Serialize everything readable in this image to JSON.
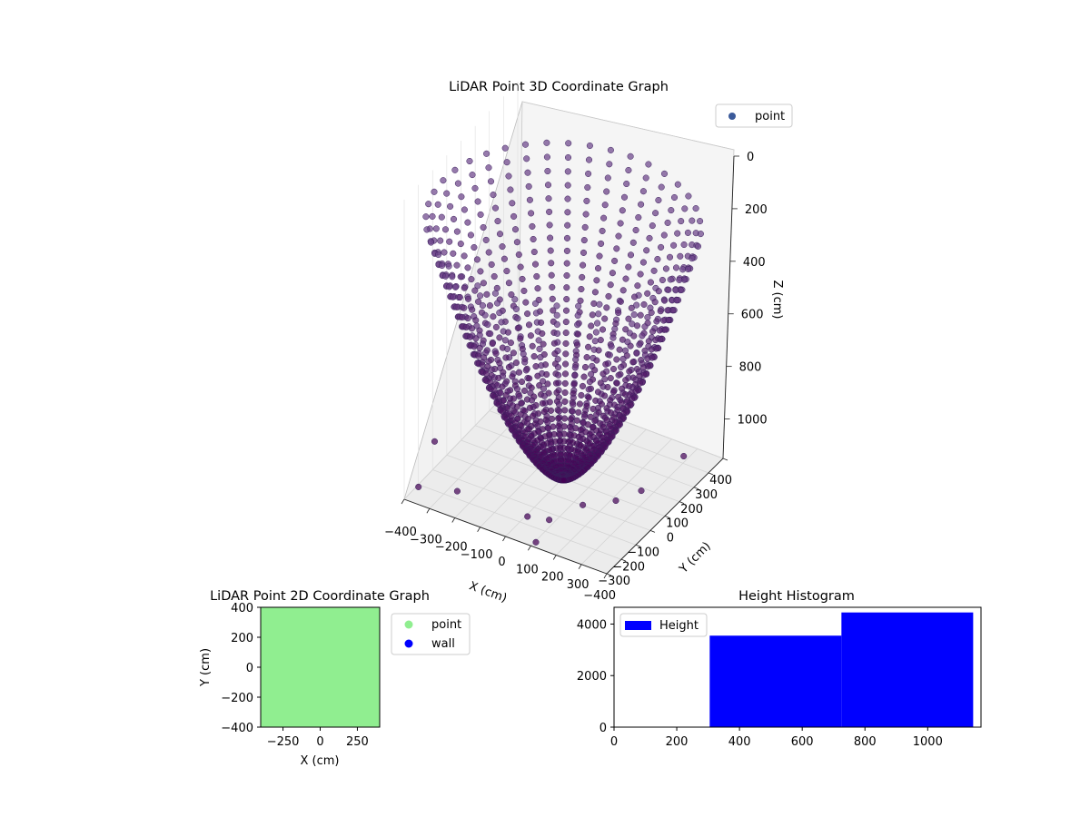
{
  "chart_data": [
    {
      "type": "scatter",
      "title": "LiDAR Point 3D Coordinate Graph",
      "xlabel": "X (cm)",
      "ylabel": "Y (cm)",
      "zlabel": "Z (cm)",
      "xlim": [
        -400,
        400
      ],
      "ylim": [
        -400,
        400
      ],
      "zlim": [
        -1150,
        0
      ],
      "x_ticks": [
        "−400",
        "−300",
        "−200",
        "−100",
        "0",
        "100",
        "200",
        "300",
        "400"
      ],
      "y_ticks": [
        "−400",
        "−300",
        "−200",
        "−100",
        "0",
        "100",
        "200",
        "300",
        "400"
      ],
      "z_ticks": [
        "0",
        "200",
        "400",
        "600",
        "800",
        "1000"
      ],
      "z_tick_values": [
        0,
        -200,
        -400,
        -600,
        -800,
        -1000
      ],
      "legend": {
        "entries": [
          {
            "label": "point",
            "color": "#3b5a9a"
          }
        ],
        "placement": "upper right"
      },
      "colormap": "viridis",
      "points": {
        "description_of_pattern": "radial lines of points forming a bowl, converging at the origin",
        "num_rays": 40,
        "points_per_ray": 34,
        "inner_z": -1150,
        "outer_z": -220,
        "outer_radius": 470
      },
      "outliers": [
        {
          "x": -355,
          "y": -380,
          "z": -1100
        },
        {
          "x": 30,
          "y": -300,
          "z": -1120
        },
        {
          "x": 110,
          "y": -290,
          "z": -1110
        },
        {
          "x": 180,
          "y": -180,
          "z": -1090
        },
        {
          "x": 270,
          "y": -110,
          "z": -1080
        },
        {
          "x": 330,
          "y": -40,
          "z": -1060
        },
        {
          "x": 360,
          "y": 200,
          "z": -1050
        },
        {
          "x": 120,
          "y": -400,
          "z": -1130
        },
        {
          "x": -230,
          "y": -330,
          "z": -1100
        },
        {
          "x": -420,
          "y": -150,
          "z": -1080
        }
      ]
    },
    {
      "type": "scatter",
      "title": "LiDAR Point 2D Coordinate Graph",
      "xlabel": "X (cm)",
      "ylabel": "Y (cm)",
      "xlim": [
        -400,
        400
      ],
      "ylim": [
        -400,
        400
      ],
      "x_ticks": [
        -250,
        0,
        250
      ],
      "y_ticks": [
        -400,
        -200,
        0,
        200,
        400
      ],
      "series": [
        {
          "name": "point",
          "color": "#90ee90"
        },
        {
          "name": "wall",
          "color": "#0000ff"
        }
      ],
      "legend_placement": "outside right"
    },
    {
      "type": "bar",
      "title": "Height Histogram",
      "series": [
        {
          "name": "Height",
          "color": "#0000ff"
        }
      ],
      "bins": [
        {
          "start": 305,
          "end": 725,
          "count": 3550
        },
        {
          "start": 725,
          "end": 1145,
          "count": 4450
        }
      ],
      "xlim": [
        0,
        1170
      ],
      "ylim": [
        0,
        4650
      ],
      "x_ticks": [
        0,
        200,
        400,
        600,
        800,
        1000
      ],
      "y_ticks": [
        0,
        2000,
        4000
      ],
      "legend_placement": "upper left"
    }
  ]
}
